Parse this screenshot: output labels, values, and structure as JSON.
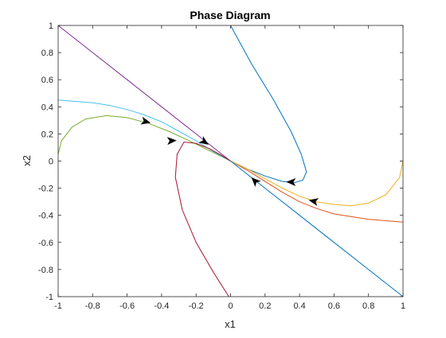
{
  "chart_data": {
    "type": "line",
    "title": "Phase Diagram",
    "xlabel": "x1",
    "ylabel": "x2",
    "xlim": [
      -1,
      1
    ],
    "ylim": [
      -1,
      1
    ],
    "xticks": [
      -1,
      -0.8,
      -0.6,
      -0.4,
      -0.2,
      0,
      0.2,
      0.4,
      0.6,
      0.8,
      1
    ],
    "yticks": [
      -1,
      -0.8,
      -0.6,
      -0.4,
      -0.2,
      0,
      0.2,
      0.4,
      0.6,
      0.8,
      1
    ],
    "x_tick_labels": [
      "-1",
      "-0.8",
      "-0.6",
      "-0.4",
      "-0.2",
      "0",
      "0.2",
      "0.4",
      "0.6",
      "0.8",
      "1"
    ],
    "y_tick_labels": [
      "-1",
      "-0.8",
      "-0.6",
      "-0.4",
      "-0.2",
      "0",
      "0.2",
      "0.4",
      "0.6",
      "0.8",
      "1"
    ],
    "grid": false,
    "series": [
      {
        "color": "#0072BD",
        "points": [
          [
            0,
            1
          ],
          [
            0.12,
            0.72
          ],
          [
            0.25,
            0.45
          ],
          [
            0.35,
            0.22
          ],
          [
            0.41,
            0.05
          ],
          [
            0.44,
            -0.08
          ],
          [
            0.42,
            -0.14
          ],
          [
            0.37,
            -0.16
          ],
          [
            0.3,
            -0.15
          ],
          [
            0.2,
            -0.11
          ],
          [
            0.1,
            -0.06
          ],
          [
            0,
            0
          ]
        ],
        "arrows": [
          {
            "at": [
              0.35,
              -0.155
            ],
            "dir": [
              -1,
              0.02
            ]
          }
        ]
      },
      {
        "color": "#D95319",
        "points": [
          [
            1,
            -0.45
          ],
          [
            0.9,
            -0.44
          ],
          [
            0.8,
            -0.43
          ],
          [
            0.7,
            -0.41
          ],
          [
            0.6,
            -0.39
          ],
          [
            0.5,
            -0.35
          ],
          [
            0.4,
            -0.3
          ],
          [
            0.3,
            -0.23
          ],
          [
            0.2,
            -0.15
          ],
          [
            0.1,
            -0.07
          ],
          [
            0,
            0
          ]
        ],
        "arrows": []
      },
      {
        "color": "#EDB120",
        "points": [
          [
            1,
            0
          ],
          [
            0.98,
            -0.12
          ],
          [
            0.9,
            -0.25
          ],
          [
            0.8,
            -0.31
          ],
          [
            0.7,
            -0.33
          ],
          [
            0.6,
            -0.32
          ],
          [
            0.5,
            -0.3
          ],
          [
            0.4,
            -0.26
          ],
          [
            0.3,
            -0.2
          ],
          [
            0.2,
            -0.13
          ],
          [
            0.1,
            -0.06
          ],
          [
            0,
            0
          ]
        ],
        "arrows": [
          {
            "at": [
              0.48,
              -0.295
            ],
            "dir": [
              -1,
              0.2
            ]
          }
        ]
      },
      {
        "color": "#7E2F8E",
        "points": [
          [
            -1,
            1
          ],
          [
            -0.8,
            0.8
          ],
          [
            -0.6,
            0.6
          ],
          [
            -0.4,
            0.4
          ],
          [
            -0.2,
            0.2
          ],
          [
            0,
            0
          ]
        ],
        "arrows": []
      },
      {
        "color": "#77AC30",
        "points": [
          [
            -1,
            0.05
          ],
          [
            -0.98,
            0.15
          ],
          [
            -0.92,
            0.25
          ],
          [
            -0.84,
            0.31
          ],
          [
            -0.72,
            0.335
          ],
          [
            -0.6,
            0.32
          ],
          [
            -0.48,
            0.28
          ],
          [
            -0.36,
            0.22
          ],
          [
            -0.24,
            0.15
          ],
          [
            -0.12,
            0.075
          ],
          [
            0,
            0
          ]
        ],
        "arrows": [
          {
            "at": [
              -0.49,
              0.29
            ],
            "dir": [
              1,
              -0.25
            ]
          }
        ]
      },
      {
        "color": "#4DBEEE",
        "points": [
          [
            -1,
            0.45
          ],
          [
            -0.9,
            0.44
          ],
          [
            -0.8,
            0.43
          ],
          [
            -0.7,
            0.41
          ],
          [
            -0.6,
            0.38
          ],
          [
            -0.5,
            0.34
          ],
          [
            -0.4,
            0.29
          ],
          [
            -0.3,
            0.22
          ],
          [
            -0.2,
            0.15
          ],
          [
            -0.1,
            0.07
          ],
          [
            0,
            0
          ]
        ],
        "arrows": [
          {
            "at": [
              -0.15,
              0.14
            ],
            "dir": [
              1,
              -0.7
            ]
          }
        ]
      },
      {
        "color": "#A2142F",
        "points": [
          [
            -0.01,
            -1
          ],
          [
            -0.1,
            -0.82
          ],
          [
            -0.2,
            -0.6
          ],
          [
            -0.28,
            -0.36
          ],
          [
            -0.32,
            -0.12
          ],
          [
            -0.31,
            0.05
          ],
          [
            -0.27,
            0.14
          ],
          [
            -0.2,
            0.13
          ],
          [
            -0.12,
            0.09
          ],
          [
            -0.05,
            0.04
          ],
          [
            0,
            0
          ]
        ],
        "arrows": [
          {
            "at": [
              -0.34,
              0.15
            ],
            "dir": [
              1,
              0.05
            ]
          }
        ]
      },
      {
        "color": "#0072BD",
        "points": [
          [
            1,
            -1
          ],
          [
            0.8,
            -0.8
          ],
          [
            0.6,
            -0.6
          ],
          [
            0.4,
            -0.4
          ],
          [
            0.2,
            -0.2
          ],
          [
            0,
            0
          ]
        ],
        "arrows": [
          {
            "at": [
              0.14,
              -0.145
            ],
            "dir": [
              -1,
              1
            ]
          }
        ]
      }
    ]
  }
}
